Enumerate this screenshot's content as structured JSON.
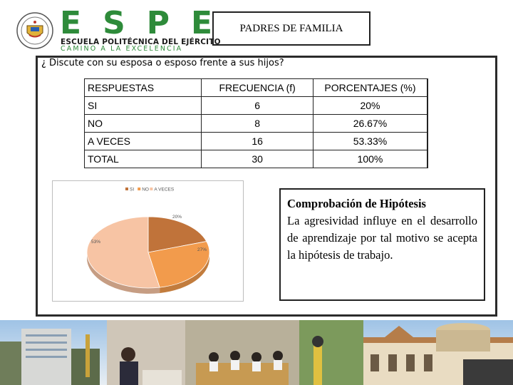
{
  "header": {
    "logo_letters": [
      "E",
      "S",
      "P",
      "E"
    ],
    "logo_subtitle": "ESCUELA POLITÉCNICA DEL EJÉRCITO",
    "logo_motto": "CAMINO A LA EXCELENCIA",
    "title": "PADRES DE FAMILIA"
  },
  "question": "¿ Discute con su esposa o esposo frente a  sus hijos?",
  "table": {
    "headers": [
      "RESPUESTAS",
      "FRECUENCIA  (f)",
      "PORCENTAJES (%)"
    ],
    "rows": [
      [
        "SI",
        "6",
        "20%"
      ],
      [
        "NO",
        "8",
        "26.67%"
      ],
      [
        "A VECES",
        "16",
        "53.33%"
      ],
      [
        "TOTAL",
        "30",
        "100%"
      ]
    ]
  },
  "chart_data": {
    "type": "pie",
    "categories": [
      "SI",
      "NO",
      "A VECES"
    ],
    "values": [
      20,
      27,
      53
    ],
    "data_labels": [
      "20%",
      "27%",
      "53%"
    ],
    "colors": [
      "#c0733a",
      "#f29b4c",
      "#f7c4a4"
    ],
    "legend_position": "top"
  },
  "hypothesis": {
    "title": "Comprobación de Hipótesis",
    "text": "La agresividad influye en el desarrollo de aprendizaje  por tal motivo  se acepta la hipótesis de trabajo."
  }
}
